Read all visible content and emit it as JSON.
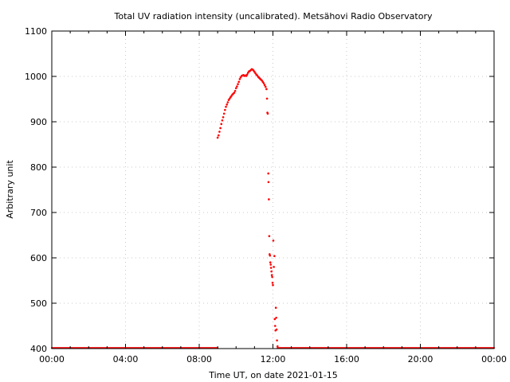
{
  "chart_data": {
    "type": "scatter",
    "title": "Total UV radiation intensity (uncalibrated). Metsähovi Radio Observatory",
    "xlabel": "Time UT, on date 2021-01-15",
    "ylabel": "Arbitrary unit",
    "xlim": [
      "00:00",
      "24:00"
    ],
    "ylim": [
      400,
      1100
    ],
    "x_ticks": [
      "00:00",
      "04:00",
      "08:00",
      "12:00",
      "16:00",
      "20:00",
      "00:00"
    ],
    "y_ticks": [
      "400",
      "500",
      "600",
      "700",
      "800",
      "900",
      "1000",
      "1100"
    ],
    "grid": true,
    "marker_color": "#ff0000",
    "series": [
      {
        "points_hours": [
          [
            9.0,
            865
          ],
          [
            9.05,
            870
          ],
          [
            9.1,
            878
          ],
          [
            9.15,
            886
          ],
          [
            9.2,
            895
          ],
          [
            9.25,
            903
          ],
          [
            9.3,
            910
          ],
          [
            9.35,
            918
          ],
          [
            9.4,
            926
          ],
          [
            9.45,
            933
          ],
          [
            9.5,
            938
          ],
          [
            9.55,
            943
          ],
          [
            9.6,
            948
          ],
          [
            9.65,
            951
          ],
          [
            9.7,
            954
          ],
          [
            9.75,
            957
          ],
          [
            9.8,
            960
          ],
          [
            9.85,
            962
          ],
          [
            9.9,
            964
          ],
          [
            9.95,
            968
          ],
          [
            10.0,
            974
          ],
          [
            10.05,
            978
          ],
          [
            10.1,
            983
          ],
          [
            10.15,
            988
          ],
          [
            10.2,
            994
          ],
          [
            10.25,
            998
          ],
          [
            10.3,
            1001
          ],
          [
            10.35,
            1002
          ],
          [
            10.4,
            1003
          ],
          [
            10.45,
            1001
          ],
          [
            10.5,
            1002
          ],
          [
            10.55,
            1001
          ],
          [
            10.6,
            1004
          ],
          [
            10.65,
            1008
          ],
          [
            10.7,
            1011
          ],
          [
            10.75,
            1012
          ],
          [
            10.8,
            1014
          ],
          [
            10.85,
            1016
          ],
          [
            10.9,
            1015
          ],
          [
            10.95,
            1013
          ],
          [
            11.0,
            1010
          ],
          [
            11.05,
            1007
          ],
          [
            11.1,
            1004
          ],
          [
            11.15,
            1002
          ],
          [
            11.2,
            999
          ],
          [
            11.25,
            997
          ],
          [
            11.3,
            995
          ],
          [
            11.35,
            993
          ],
          [
            11.4,
            991
          ],
          [
            11.45,
            988
          ],
          [
            11.5,
            985
          ],
          [
            11.55,
            981
          ],
          [
            11.6,
            977
          ],
          [
            11.65,
            972
          ],
          [
            11.68,
            951
          ],
          [
            11.7,
            920
          ],
          [
            11.72,
            918
          ],
          [
            11.75,
            786
          ],
          [
            11.76,
            767
          ],
          [
            11.78,
            729
          ],
          [
            11.8,
            648
          ],
          [
            11.82,
            608
          ],
          [
            11.84,
            605
          ],
          [
            11.86,
            590
          ],
          [
            11.88,
            585
          ],
          [
            11.9,
            578
          ],
          [
            11.92,
            570
          ],
          [
            11.94,
            562
          ],
          [
            11.96,
            558
          ],
          [
            11.98,
            545
          ],
          [
            12.0,
            540
          ],
          [
            12.02,
            638
          ],
          [
            12.05,
            580
          ],
          [
            12.08,
            604
          ],
          [
            12.1,
            465
          ],
          [
            12.12,
            450
          ],
          [
            12.14,
            440
          ],
          [
            12.16,
            490
          ],
          [
            12.18,
            468
          ],
          [
            12.2,
            442
          ],
          [
            12.22,
            418
          ],
          [
            12.25,
            405
          ]
        ],
        "baseline_value": 400,
        "baseline_segments_hours": [
          [
            0.0,
            9.0
          ],
          [
            12.25,
            24.0
          ]
        ]
      }
    ]
  }
}
